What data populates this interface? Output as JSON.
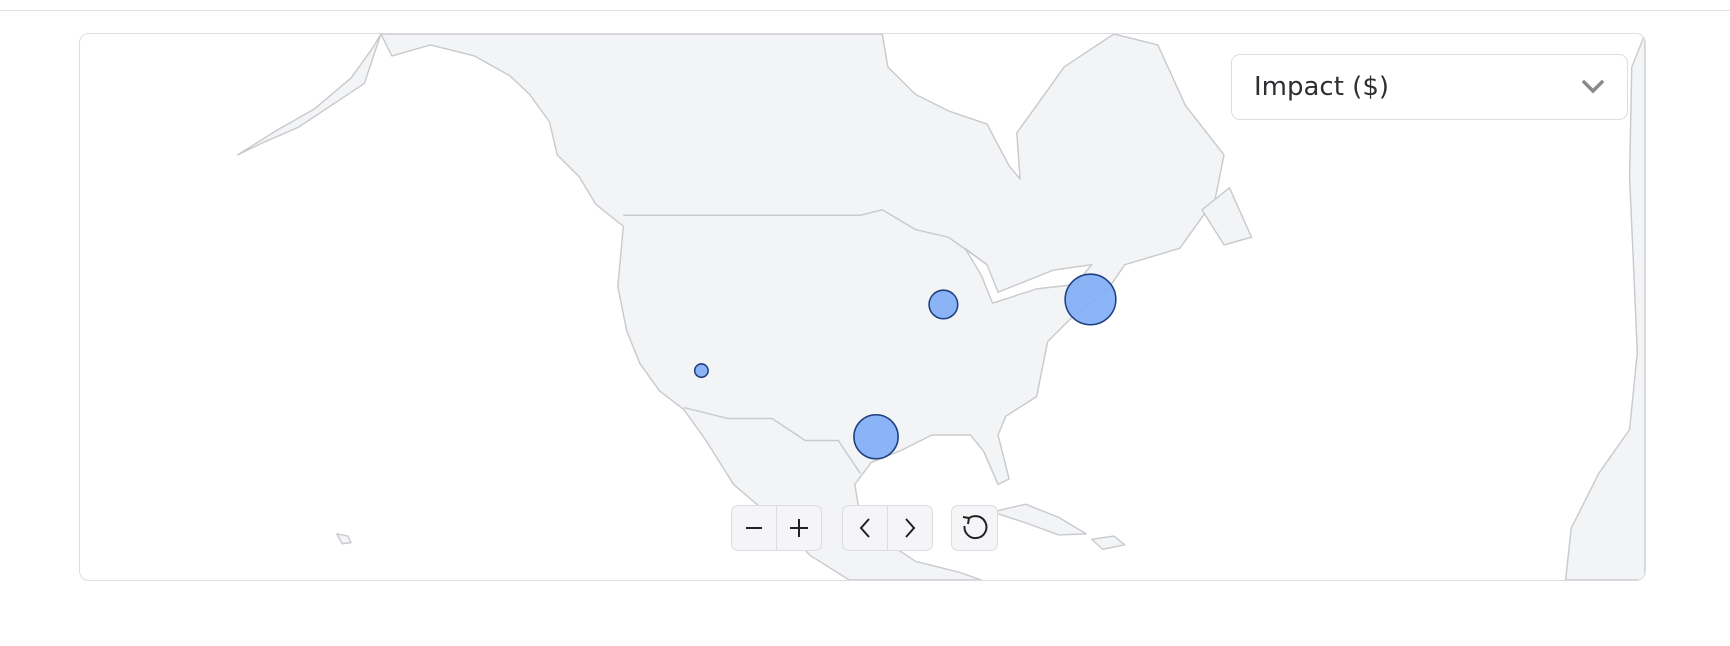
{
  "map": {
    "land_color": "#f3f4f6",
    "border_color": "#c9cacd",
    "bubble_fill": "#7fadf7",
    "bubble_stroke": "#1e3f80",
    "metric_select": {
      "selected": "Impact ($)",
      "icon": "chevron-down-icon"
    },
    "points": [
      {
        "lon": -115,
        "lat": 35,
        "impact_relative": 0.07
      },
      {
        "lon": -89.5,
        "lat": 40.3,
        "impact_relative": 0.32
      },
      {
        "lon": -74,
        "lat": 40.7,
        "impact_relative": 1.0
      },
      {
        "lon": -96.6,
        "lat": 29.7,
        "impact_relative": 0.76
      }
    ],
    "controls": {
      "zoom_out_icon": "minus-icon",
      "zoom_in_icon": "plus-icon",
      "pan_left_icon": "chevron-left-icon",
      "pan_right_icon": "chevron-right-icon",
      "reset_icon": "reset-icon"
    }
  }
}
